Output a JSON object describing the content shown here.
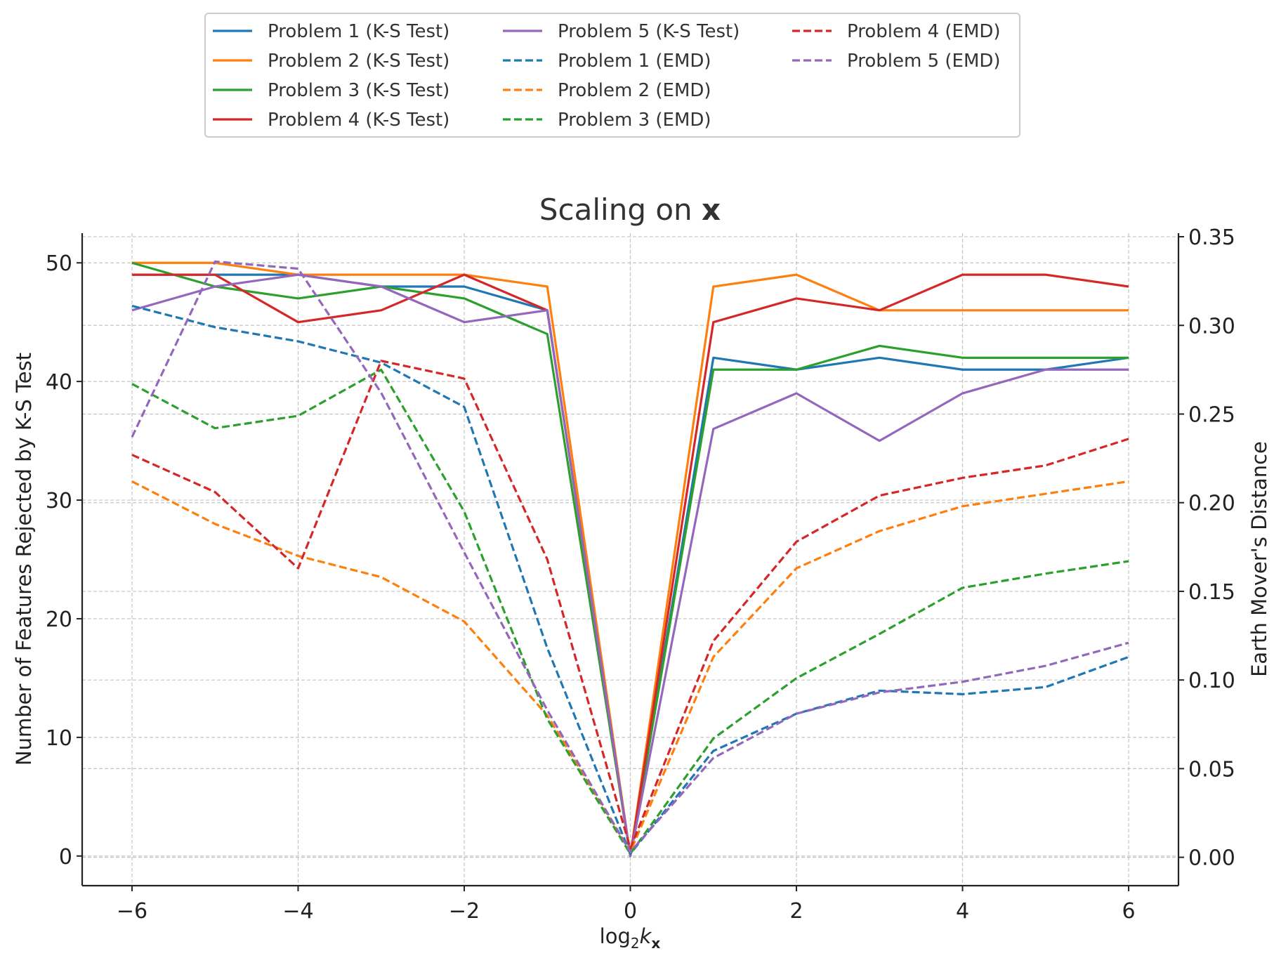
{
  "chart_data": {
    "type": "line",
    "title": "Scaling on ",
    "title_bold": "x",
    "xlabel_prefix": "log",
    "xlabel_sub": "2",
    "xlabel_var": "k",
    "xlabel_var_sub": "x",
    "ylabel": "Number of Features Rejected by K-S Test",
    "y2label": "Earth Mover's Distance",
    "x": [
      -6,
      -5,
      -4,
      -3,
      -2,
      -1,
      0,
      1,
      2,
      3,
      4,
      5,
      6
    ],
    "xlim": [
      -6.6,
      6.6
    ],
    "ylim": [
      -2.5,
      52.5
    ],
    "y2lim": [
      -0.016,
      0.352
    ],
    "xticks": [
      -6,
      -4,
      -2,
      0,
      2,
      4,
      6
    ],
    "xtick_labels": [
      "−6",
      "−4",
      "−2",
      "0",
      "2",
      "4",
      "6"
    ],
    "yticks": [
      0,
      10,
      20,
      30,
      40,
      50
    ],
    "ytick_labels": [
      "0",
      "10",
      "20",
      "30",
      "40",
      "50"
    ],
    "y2ticks": [
      0.0,
      0.05,
      0.1,
      0.15,
      0.2,
      0.25,
      0.3,
      0.35
    ],
    "y2tick_labels": [
      "0.00",
      "0.05",
      "0.10",
      "0.15",
      "0.20",
      "0.25",
      "0.30",
      "0.35"
    ],
    "grid": true,
    "legend_position": "top-center, above plot",
    "series": [
      {
        "name": "Problem 1 (K-S Test)",
        "axis": "left",
        "style": "solid",
        "color": "#1f77b4",
        "values": [
          49,
          49,
          49,
          48,
          48,
          46,
          0,
          42,
          41,
          42,
          41,
          41,
          42
        ]
      },
      {
        "name": "Problem 2 (K-S Test)",
        "axis": "left",
        "style": "solid",
        "color": "#ff7f0e",
        "values": [
          50,
          50,
          49,
          49,
          49,
          48,
          0,
          48,
          49,
          46,
          46,
          46,
          46
        ]
      },
      {
        "name": "Problem 3 (K-S Test)",
        "axis": "left",
        "style": "solid",
        "color": "#2ca02c",
        "values": [
          50,
          48,
          47,
          48,
          47,
          44,
          0,
          41,
          41,
          43,
          42,
          42,
          42
        ]
      },
      {
        "name": "Problem 4 (K-S Test)",
        "axis": "left",
        "style": "solid",
        "color": "#d62728",
        "values": [
          49,
          49,
          45,
          46,
          49,
          46,
          0,
          45,
          47,
          46,
          49,
          49,
          48
        ]
      },
      {
        "name": "Problem 5 (K-S Test)",
        "axis": "left",
        "style": "solid",
        "color": "#9467bd",
        "values": [
          46,
          48,
          49,
          48,
          45,
          46,
          0,
          36,
          39,
          35,
          39,
          41,
          41
        ]
      },
      {
        "name": "Problem 1 (EMD)",
        "axis": "right",
        "style": "dashed",
        "color": "#1f77b4",
        "values": [
          0.311,
          0.299,
          0.291,
          0.279,
          0.254,
          0.118,
          0.002,
          0.06,
          0.081,
          0.094,
          0.092,
          0.096,
          0.113
        ]
      },
      {
        "name": "Problem 2 (EMD)",
        "axis": "right",
        "style": "dashed",
        "color": "#ff7f0e",
        "values": [
          0.212,
          0.188,
          0.17,
          0.158,
          0.133,
          0.08,
          0.003,
          0.113,
          0.163,
          0.184,
          0.198,
          0.205,
          0.212
        ]
      },
      {
        "name": "Problem 3 (EMD)",
        "axis": "right",
        "style": "dashed",
        "color": "#2ca02c",
        "values": [
          0.267,
          0.242,
          0.249,
          0.275,
          0.195,
          0.078,
          0.002,
          0.067,
          0.101,
          0.126,
          0.152,
          0.16,
          0.167
        ]
      },
      {
        "name": "Problem 4 (EMD)",
        "axis": "right",
        "style": "dashed",
        "color": "#d62728",
        "values": [
          0.227,
          0.206,
          0.163,
          0.28,
          0.27,
          0.168,
          0.005,
          0.122,
          0.178,
          0.204,
          0.214,
          0.221,
          0.236
        ]
      },
      {
        "name": "Problem 5 (EMD)",
        "axis": "right",
        "style": "dashed",
        "color": "#9467bd",
        "values": [
          0.237,
          0.336,
          0.332,
          0.262,
          0.172,
          0.083,
          0.003,
          0.056,
          0.081,
          0.093,
          0.099,
          0.108,
          0.121
        ]
      }
    ]
  }
}
